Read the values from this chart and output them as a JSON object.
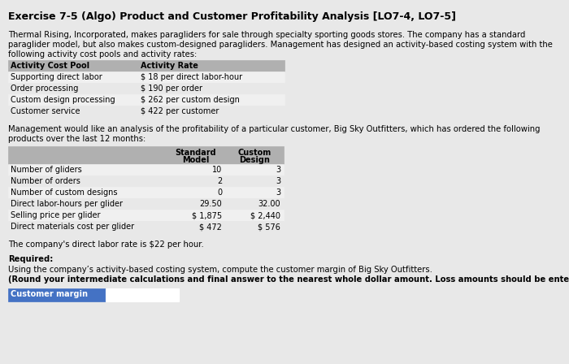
{
  "title": "Exercise 7-5 (Algo) Product and Customer Profitability Analysis [LO7-4, LO7-5]",
  "bg_color": "#e8e8e8",
  "white_bg": "#ffffff",
  "intro_line1": "Thermal Rising, Incorporated, makes paragliders for sale through specialty sporting goods stores. The company has a standard",
  "intro_line2": "paraglider model, but also makes custom-designed paragliders. Management has designed an activity-based costing system with the",
  "intro_line3": "following activity cost pools and activity rates:",
  "table1_header": [
    "Activity Cost Pool",
    "Activity Rate"
  ],
  "table1_rows": [
    [
      "Supporting direct labor",
      "$ 18 per direct labor-hour"
    ],
    [
      "Order processing",
      "$ 190 per order"
    ],
    [
      "Custom design processing",
      "$ 262 per custom design"
    ],
    [
      "Customer service",
      "$ 422 per customer"
    ]
  ],
  "middle_line1": "Management would like an analysis of the profitability of a particular customer, Big Sky Outfitters, which has ordered the following",
  "middle_line2": "products over the last 12 months:",
  "table2_rows": [
    [
      "Number of gliders",
      "10",
      "3"
    ],
    [
      "Number of orders",
      "2",
      "3"
    ],
    [
      "Number of custom designs",
      "0",
      "3"
    ],
    [
      "Direct labor-hours per glider",
      "29.50",
      "32.00"
    ],
    [
      "Selling price per glider",
      "$ 1,875",
      "$ 2,440"
    ],
    [
      "Direct materials cost per glider",
      "$ 472",
      "$ 576"
    ]
  ],
  "direct_labor_text": "The company's direct labor rate is $22 per hour.",
  "required_label": "Required:",
  "req_normal": "Using the company’s activity-based costing system, compute the customer margin of Big Sky Outfitters. ",
  "req_bold": "(Round your intermediate calculations and final answer to the nearest whole dollar amount. Loss amounts should be entered with a minus sign.)",
  "customer_margin_label": "Customer margin",
  "label_bg": "#4472c4",
  "label_text_color": "#ffffff",
  "table_header_bg": "#b0b0b0",
  "table_row_bg_light": "#f0f0f0",
  "table_row_bg_dark": "#d8d8d8"
}
